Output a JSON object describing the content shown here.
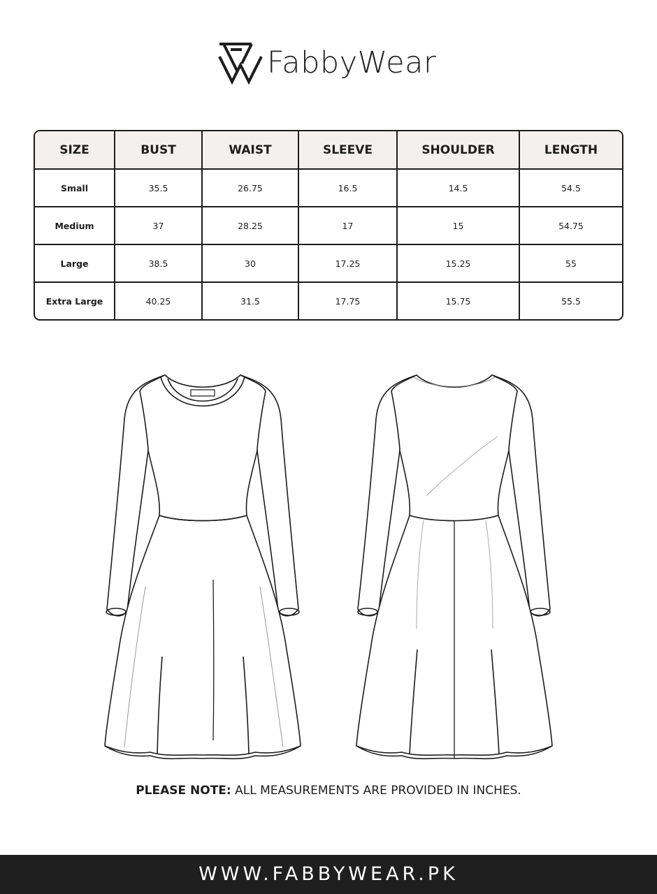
{
  "brand": {
    "name": "FabbyWear",
    "logo_icon": "fw-monogram-icon"
  },
  "size_chart": {
    "headers": [
      "SIZE",
      "BUST",
      "WAIST",
      "SLEEVE",
      "SHOULDER",
      "LENGTH"
    ],
    "rows": [
      [
        "Small",
        "35.5",
        "26.75",
        "16.5",
        "14.5",
        "54.5"
      ],
      [
        "Medium",
        "37",
        "28.25",
        "17",
        "15",
        "54.75"
      ],
      [
        "Large",
        "38.5",
        "30",
        "17.25",
        "15.25",
        "55"
      ],
      [
        "Extra Large",
        "40.25",
        "31.5",
        "17.75",
        "15.75",
        "55.5"
      ]
    ],
    "header_bg": "#f4f0ef"
  },
  "note": {
    "label": "PLEASE NOTE:",
    "text": "ALL MEASUREMENTS ARE PROVIDED IN INCHES."
  },
  "footer": {
    "url": "WWW.FABBYWEAR.PK",
    "bg": "#1f1f1f"
  }
}
